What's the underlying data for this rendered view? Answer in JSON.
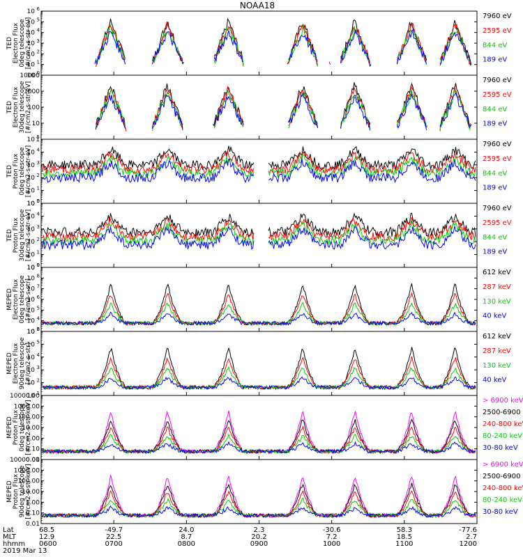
{
  "chart_data": {
    "type": "line",
    "title": "NOAA18",
    "x_range": [
      "0600",
      "1200"
    ],
    "panels": [
      {
        "ylabel": [
          "TED",
          "Electron Flux",
          "0deg telescope",
          "[#/cm2-s-str-eV]"
        ],
        "yscale": "log",
        "ylim": [
          1,
          1000000
        ],
        "ticks": [
          "10^0",
          "10^1",
          "10^2",
          "10^3",
          "10^4",
          "10^5",
          "10^6"
        ],
        "tick_values": [
          1,
          10,
          100,
          1000,
          10000,
          100000,
          1000000
        ],
        "series": [
          {
            "name": "7960 eV",
            "color": "#000000"
          },
          {
            "name": "2595 eV",
            "color": "#ff0000"
          },
          {
            "name": "844 eV",
            "color": "#00cc00"
          },
          {
            "name": "189 eV",
            "color": "#0000ff"
          }
        ]
      },
      {
        "ylabel": [
          "TED",
          "Electron Flux",
          "30deg telescope",
          "[#/cm2-s-str-eV]"
        ],
        "yscale": "log",
        "ylim": [
          1,
          10000
        ],
        "ticks": [
          "1",
          "10",
          "100",
          "1000",
          "10000"
        ],
        "tick_values": [
          1,
          10,
          100,
          1000,
          10000
        ],
        "series": [
          {
            "name": "7960 eV",
            "color": "#000000"
          },
          {
            "name": "2595 eV",
            "color": "#ff0000"
          },
          {
            "name": "844 eV",
            "color": "#00cc00"
          },
          {
            "name": "189 eV",
            "color": "#0000ff"
          }
        ]
      },
      {
        "ylabel": [
          "TED",
          "Proton Flux",
          "0deg telescope",
          "[#/cm2-s-str-eV]"
        ],
        "yscale": "log",
        "ylim": [
          1,
          100000
        ],
        "ticks": [
          "10^0",
          "10^1",
          "10^2",
          "10^3",
          "10^4",
          "10^5"
        ],
        "tick_values": [
          1,
          10,
          100,
          1000,
          10000,
          100000
        ],
        "series": [
          {
            "name": "7960 eV",
            "color": "#000000"
          },
          {
            "name": "2595 eV",
            "color": "#ff0000"
          },
          {
            "name": "844 eV",
            "color": "#00cc00"
          },
          {
            "name": "189 eV",
            "color": "#0000ff"
          }
        ]
      },
      {
        "ylabel": [
          "TED",
          "Proton Flux",
          "30deg telescope",
          "[#/cm2-s-str-eV]"
        ],
        "yscale": "log",
        "ylim": [
          1,
          100000
        ],
        "ticks": [
          "10^0",
          "10^1",
          "10^2",
          "10^3",
          "10^4",
          "10^5"
        ],
        "tick_values": [
          1,
          10,
          100,
          1000,
          10000,
          100000
        ],
        "series": [
          {
            "name": "7960 eV",
            "color": "#000000"
          },
          {
            "name": "2595 eV",
            "color": "#ff0000"
          },
          {
            "name": "844 eV",
            "color": "#00cc00"
          },
          {
            "name": "189 eV",
            "color": "#0000ff"
          }
        ]
      },
      {
        "ylabel": [
          "MEPED",
          "Electron Flux",
          "0deg telescope",
          "[#/cm2-s-str]"
        ],
        "yscale": "log",
        "ylim": [
          1000,
          1000000000
        ],
        "ticks": [
          "10^3",
          "10^4",
          "10^5",
          "10^6",
          "10^7",
          "10^8",
          "10^9"
        ],
        "tick_values": [
          1000,
          10000,
          100000,
          1000000,
          10000000,
          100000000,
          1000000000
        ],
        "series": [
          {
            "name": "612 keV",
            "color": "#000000"
          },
          {
            "name": "287 keV",
            "color": "#ff0000"
          },
          {
            "name": "130 keV",
            "color": "#00cc00"
          },
          {
            "name": "40 keV",
            "color": "#0000ff"
          }
        ]
      },
      {
        "ylabel": [
          "MEPED",
          "Electron Flux",
          "90deg telescope",
          "[#/cm2-s-str]"
        ],
        "yscale": "log",
        "ylim": [
          10,
          1000000
        ],
        "ticks": [
          "10^1",
          "10^2",
          "10^3",
          "10^4",
          "10^5",
          "10^6"
        ],
        "tick_values": [
          10,
          100,
          1000,
          10000,
          100000,
          1000000
        ],
        "series": [
          {
            "name": "612 keV",
            "color": "#000000"
          },
          {
            "name": "287 keV",
            "color": "#ff0000"
          },
          {
            "name": "130 keV",
            "color": "#00cc00"
          },
          {
            "name": "40 keV",
            "color": "#0000ff"
          }
        ]
      },
      {
        "ylabel": [
          "MEPED",
          "Proton Flux",
          "0deg telescope",
          "[#/cm2-s-str-keV]"
        ],
        "yscale": "log",
        "ylim": [
          0.01,
          10000
        ],
        "ticks": [
          "0.01",
          "0.10",
          "1.00",
          "10.00",
          "100.00",
          "1000.00",
          "10000.00"
        ],
        "tick_values": [
          0.01,
          0.1,
          1,
          10,
          100,
          1000,
          10000
        ],
        "series": [
          {
            "name": "> 6900 keV",
            "color": "#ff00ff"
          },
          {
            "name": "2500-6900",
            "color": "#000000"
          },
          {
            "name": "240-800 keV",
            "color": "#ff0000"
          },
          {
            "name": "80-240 keV",
            "color": "#00cc00"
          },
          {
            "name": "30-80 keV",
            "color": "#0000ff"
          }
        ]
      },
      {
        "ylabel": [
          "MEPED",
          "Proton Flux",
          "90deg telescope",
          "[#/cm2-s-str-keV]"
        ],
        "yscale": "log",
        "ylim": [
          0.01,
          10000
        ],
        "ticks": [
          "0.01",
          "0.10",
          "1.00",
          "10.00",
          "100.00",
          "1000.00",
          "10000.00"
        ],
        "tick_values": [
          0.01,
          0.1,
          1,
          10,
          100,
          1000,
          10000
        ],
        "series": [
          {
            "name": "> 6900 keV",
            "color": "#ff00ff"
          },
          {
            "name": "2500-6900",
            "color": "#000000"
          },
          {
            "name": "240-800 keV",
            "color": "#ff0000"
          },
          {
            "name": "80-240 keV",
            "color": "#00cc00"
          },
          {
            "name": "30-80 keV",
            "color": "#0000ff"
          }
        ]
      }
    ],
    "x_axis": {
      "row_labels": [
        "Lat",
        "MLT",
        "hhmm"
      ],
      "columns": [
        {
          "Lat": "68.5",
          "MLT": "12.9",
          "hhmm": "0600"
        },
        {
          "Lat": "-49.7",
          "MLT": "22.5",
          "hhmm": "0700"
        },
        {
          "Lat": "24.0",
          "MLT": "8.7",
          "hhmm": "0800"
        },
        {
          "Lat": "2.3",
          "MLT": "20.2",
          "hhmm": "0900"
        },
        {
          "Lat": "-30.6",
          "MLT": "7.2",
          "hhmm": "1000"
        },
        {
          "Lat": "58.3",
          "MLT": "18.5",
          "hhmm": "1100"
        },
        {
          "Lat": "-77.6",
          "MLT": "2.7",
          "hhmm": "1200"
        }
      ]
    },
    "date": "2019 Mar 13"
  }
}
